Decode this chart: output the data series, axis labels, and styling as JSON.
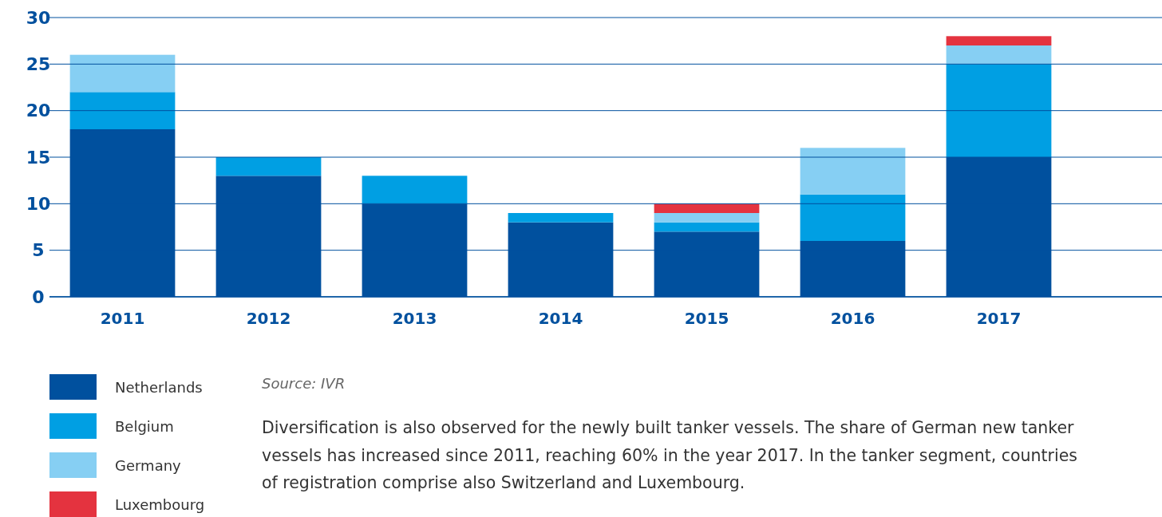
{
  "chart_data": {
    "type": "bar",
    "stacked": true,
    "categories": [
      "2011",
      "2012",
      "2013",
      "2014",
      "2015",
      "2016",
      "2017"
    ],
    "series": [
      {
        "name": "Netherlands",
        "color": "#00509e",
        "values": [
          18,
          13,
          10,
          8,
          7,
          6,
          15
        ]
      },
      {
        "name": "Belgium",
        "color": "#009fe3",
        "values": [
          4,
          2,
          3,
          1,
          1,
          5,
          10
        ]
      },
      {
        "name": "Germany",
        "color": "#86cff3",
        "values": [
          4,
          0,
          0,
          0,
          1,
          5,
          2
        ]
      },
      {
        "name": "Luxembourg",
        "color": "#e4333f",
        "values": [
          0,
          0,
          0,
          0,
          1,
          0,
          1
        ]
      }
    ],
    "ylim": [
      0,
      30
    ],
    "yticks": [
      0,
      5,
      10,
      15,
      20,
      25,
      30
    ],
    "grid": "y",
    "legend": "bottom left",
    "annotations": [
      "Source: IVR",
      "Diversification is also observed for the newly built tanker vessels. The share of German new tanker vessels has increased since 2011, reaching 60% in the year 2017. In the tanker segment, countries of registration comprise also Switzerland and Luxembourg."
    ]
  }
}
